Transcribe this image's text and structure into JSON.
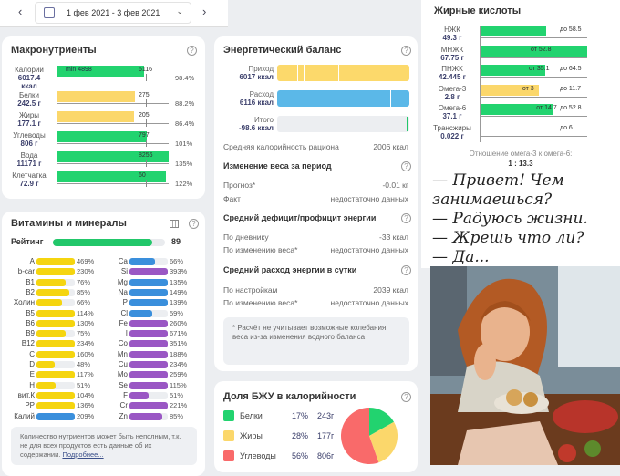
{
  "date_picker": {
    "range": "1 фев 2021 - 3 фев 2021"
  },
  "macros": {
    "title": "Макронутриенты",
    "rows": [
      {
        "name": "Калории",
        "value": "6017.4",
        "unit": "ккал",
        "bar_label": "6116",
        "min_label": "min 4898",
        "percent": "98.4%",
        "pct": 98.4,
        "color": "#22d36f"
      },
      {
        "name": "Белки",
        "value": "242.5 г",
        "bar_label": "275",
        "percent": "88.2%",
        "pct": 88.2,
        "color": "#fbd76b"
      },
      {
        "name": "Жиры",
        "value": "177.1 г",
        "bar_label": "205",
        "percent": "86.4%",
        "pct": 86.4,
        "color": "#fbd76b"
      },
      {
        "name": "Углеводы",
        "value": "806 г",
        "bar_label": "797",
        "percent": "101%",
        "pct": 101,
        "color": "#22d36f"
      },
      {
        "name": "Вода",
        "value": "11171 г",
        "bar_label": "8256",
        "percent": "135%",
        "pct": 135,
        "color": "#22d36f"
      },
      {
        "name": "Клетчатка",
        "value": "72.9 г",
        "bar_label": "60",
        "percent": "122%",
        "pct": 122,
        "color": "#22d36f"
      }
    ]
  },
  "vitamins": {
    "title": "Витамины и минералы",
    "rating_label": "Рейтинг",
    "rating": 89,
    "left": [
      [
        "A",
        469,
        "#f5d50f"
      ],
      [
        "b-car",
        230,
        "#f5d50f"
      ],
      [
        "B1",
        76,
        "#f5d50f"
      ],
      [
        "B2",
        85,
        "#f5d50f"
      ],
      [
        "Холин",
        66,
        "#f5d50f"
      ],
      [
        "B5",
        114,
        "#f5d50f"
      ],
      [
        "B6",
        130,
        "#f5d50f"
      ],
      [
        "B9",
        75,
        "#f5d50f"
      ],
      [
        "B12",
        234,
        "#f5d50f"
      ],
      [
        "C",
        160,
        "#f5d50f"
      ],
      [
        "D",
        48,
        "#f5d50f"
      ],
      [
        "E",
        117,
        "#f5d50f"
      ],
      [
        "H",
        51,
        "#f5d50f"
      ],
      [
        "вит.К",
        104,
        "#f5d50f"
      ],
      [
        "PP",
        136,
        "#f5d50f"
      ],
      [
        "Калий",
        209,
        "#3a8fdc"
      ]
    ],
    "right": [
      [
        "Ca",
        66,
        "#3a8fdc"
      ],
      [
        "Si",
        393,
        "#9a57c4"
      ],
      [
        "Mg",
        135,
        "#3a8fdc"
      ],
      [
        "Na",
        149,
        "#3a8fdc"
      ],
      [
        "P",
        139,
        "#3a8fdc"
      ],
      [
        "Cl",
        59,
        "#3a8fdc"
      ],
      [
        "Fe",
        260,
        "#9a57c4"
      ],
      [
        "I",
        671,
        "#9a57c4"
      ],
      [
        "Co",
        351,
        "#9a57c4"
      ],
      [
        "Mn",
        188,
        "#9a57c4"
      ],
      [
        "Cu",
        234,
        "#9a57c4"
      ],
      [
        "Mo",
        259,
        "#9a57c4"
      ],
      [
        "Se",
        115,
        "#9a57c4"
      ],
      [
        "F",
        51,
        "#9a57c4"
      ],
      [
        "Cr",
        221,
        "#9a57c4"
      ],
      [
        "Zn",
        85,
        "#9a57c4"
      ]
    ],
    "note": "Количество нутриентов может быть неполным, т.к. не для всех продуктов есть данные об их содержании.",
    "more_link": "Подробнее..."
  },
  "energy": {
    "title": "Энергетический баланс",
    "intake_label": "Приход",
    "intake": "6017 ккал",
    "expense_label": "Расход",
    "expense": "6116 ккал",
    "total_label": "Итого",
    "total": "-98.6 ккал",
    "avg_label": "Средняя калорийность рациона",
    "avg": "2006 ккал",
    "weight_title": "Изменение веса за период",
    "forecast_label": "Прогноз*",
    "forecast": "-0.01 кг",
    "fact_label": "Факт",
    "fact": "недостаточно данных",
    "deficit_title": "Средний дефицит/профицит энергии",
    "diary_label": "По дневнику",
    "diary": "-33 ккал",
    "byweight_label": "По изменению веса*",
    "byweight": "недостаточно данных",
    "daily_title": "Средний расход энергии в сутки",
    "settings_label": "По настройкам",
    "settings": "2039 ккал",
    "byweight2_label": "По изменению веса*",
    "byweight2": "недостаточно данных",
    "note": "* Расчёт не учитывает возможные колебания веса из-за изменения водного баланса"
  },
  "bju": {
    "title": "Доля БЖУ в калорийности",
    "items": [
      {
        "name": "Белки",
        "pct": "17%",
        "grams": "243г",
        "value": 17,
        "color": "#22d36f"
      },
      {
        "name": "Жиры",
        "pct": "28%",
        "grams": "177г",
        "value": 28,
        "color": "#fbd76b"
      },
      {
        "name": "Углеводы",
        "pct": "56%",
        "grams": "806г",
        "value": 56,
        "color": "#f96a6a"
      }
    ]
  },
  "fatty": {
    "title": "Жирные кислоты",
    "rows": [
      {
        "name": "НЖК",
        "value": "49.3 г",
        "fill": 0.62,
        "color": "#22d36f",
        "from": "",
        "to": "до 58.5"
      },
      {
        "name": "МНЖК",
        "value": "67.75 г",
        "fill": 1.0,
        "color": "#22d36f",
        "from": "от 52.8",
        "to": ""
      },
      {
        "name": "ПНЖК",
        "value": "42.445 г",
        "fill": 0.61,
        "color": "#22d36f",
        "from": "от 35.1",
        "to": "до 64.5"
      },
      {
        "name": "Омега-3",
        "value": "2.8 г",
        "fill": 0.55,
        "color": "#fbd76b",
        "from": "от 3",
        "to": "до 11.7"
      },
      {
        "name": "Омега-6",
        "value": "37.1 г",
        "fill": 0.68,
        "color": "#22d36f",
        "from": "от 14.7",
        "to": "до 52.8"
      },
      {
        "name": "Трансжиры",
        "value": "0.022 г",
        "fill": 0.0,
        "color": "#22d36f",
        "from": "",
        "to": "до 6"
      }
    ],
    "ratio_label": "Отношение омега-3 к омега-6:",
    "ratio": "1 : 13.3"
  },
  "meme": {
    "lines": [
      "— Привет! Чем",
      "занимаешься?",
      "— Радуюсь жизни.",
      "— Жрешь что ли?",
      "— Да..."
    ]
  }
}
